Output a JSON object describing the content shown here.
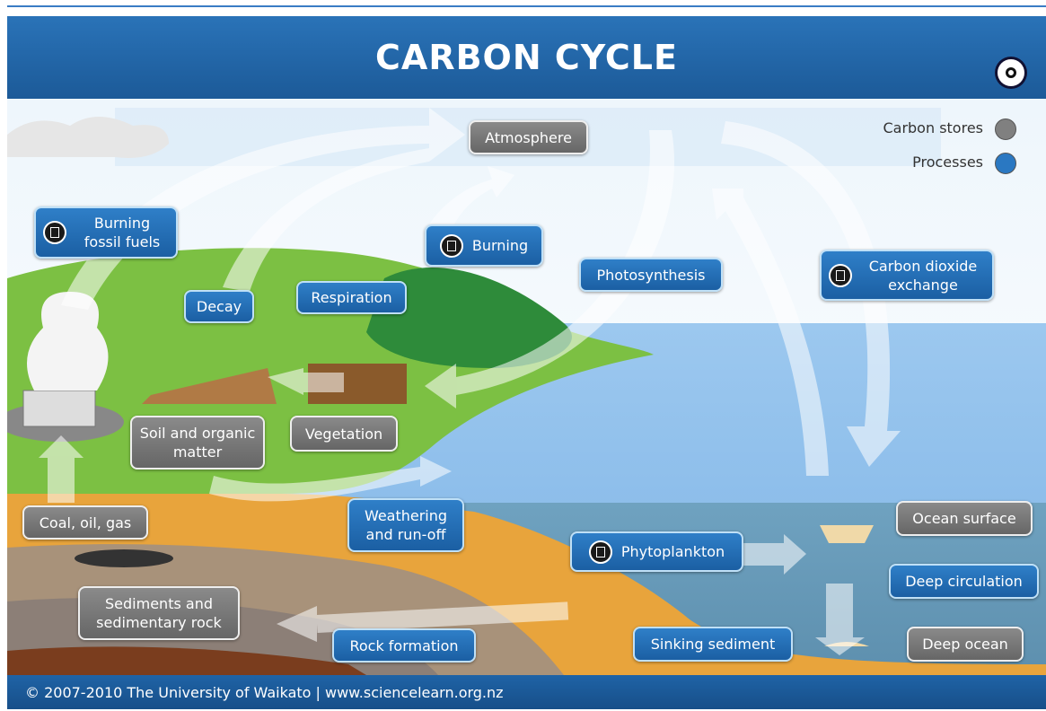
{
  "header": {
    "title": "CARBON CYCLE"
  },
  "legend": [
    {
      "label": "Carbon stores"
    },
    {
      "label": "Processes"
    }
  ],
  "carbon_stores": [
    "Atmosphere",
    "Soil and organic matter",
    "Vegetation",
    "Coal, oil, gas",
    "Sediments and sedimentary rock",
    "Ocean surface",
    "Deep ocean"
  ],
  "processes": [
    "Burning fossil fuels",
    "Decay",
    "Respiration",
    "Burning",
    "Photosynthesis",
    "Carbon dioxide exchange",
    "Weathering and run-off",
    "Phytoplankton",
    "Rock formation",
    "Sinking sediment",
    "Deep circulation"
  ],
  "footer": "© 2007-2010 The University of Waikato | www.sciencelearn.org.nz"
}
